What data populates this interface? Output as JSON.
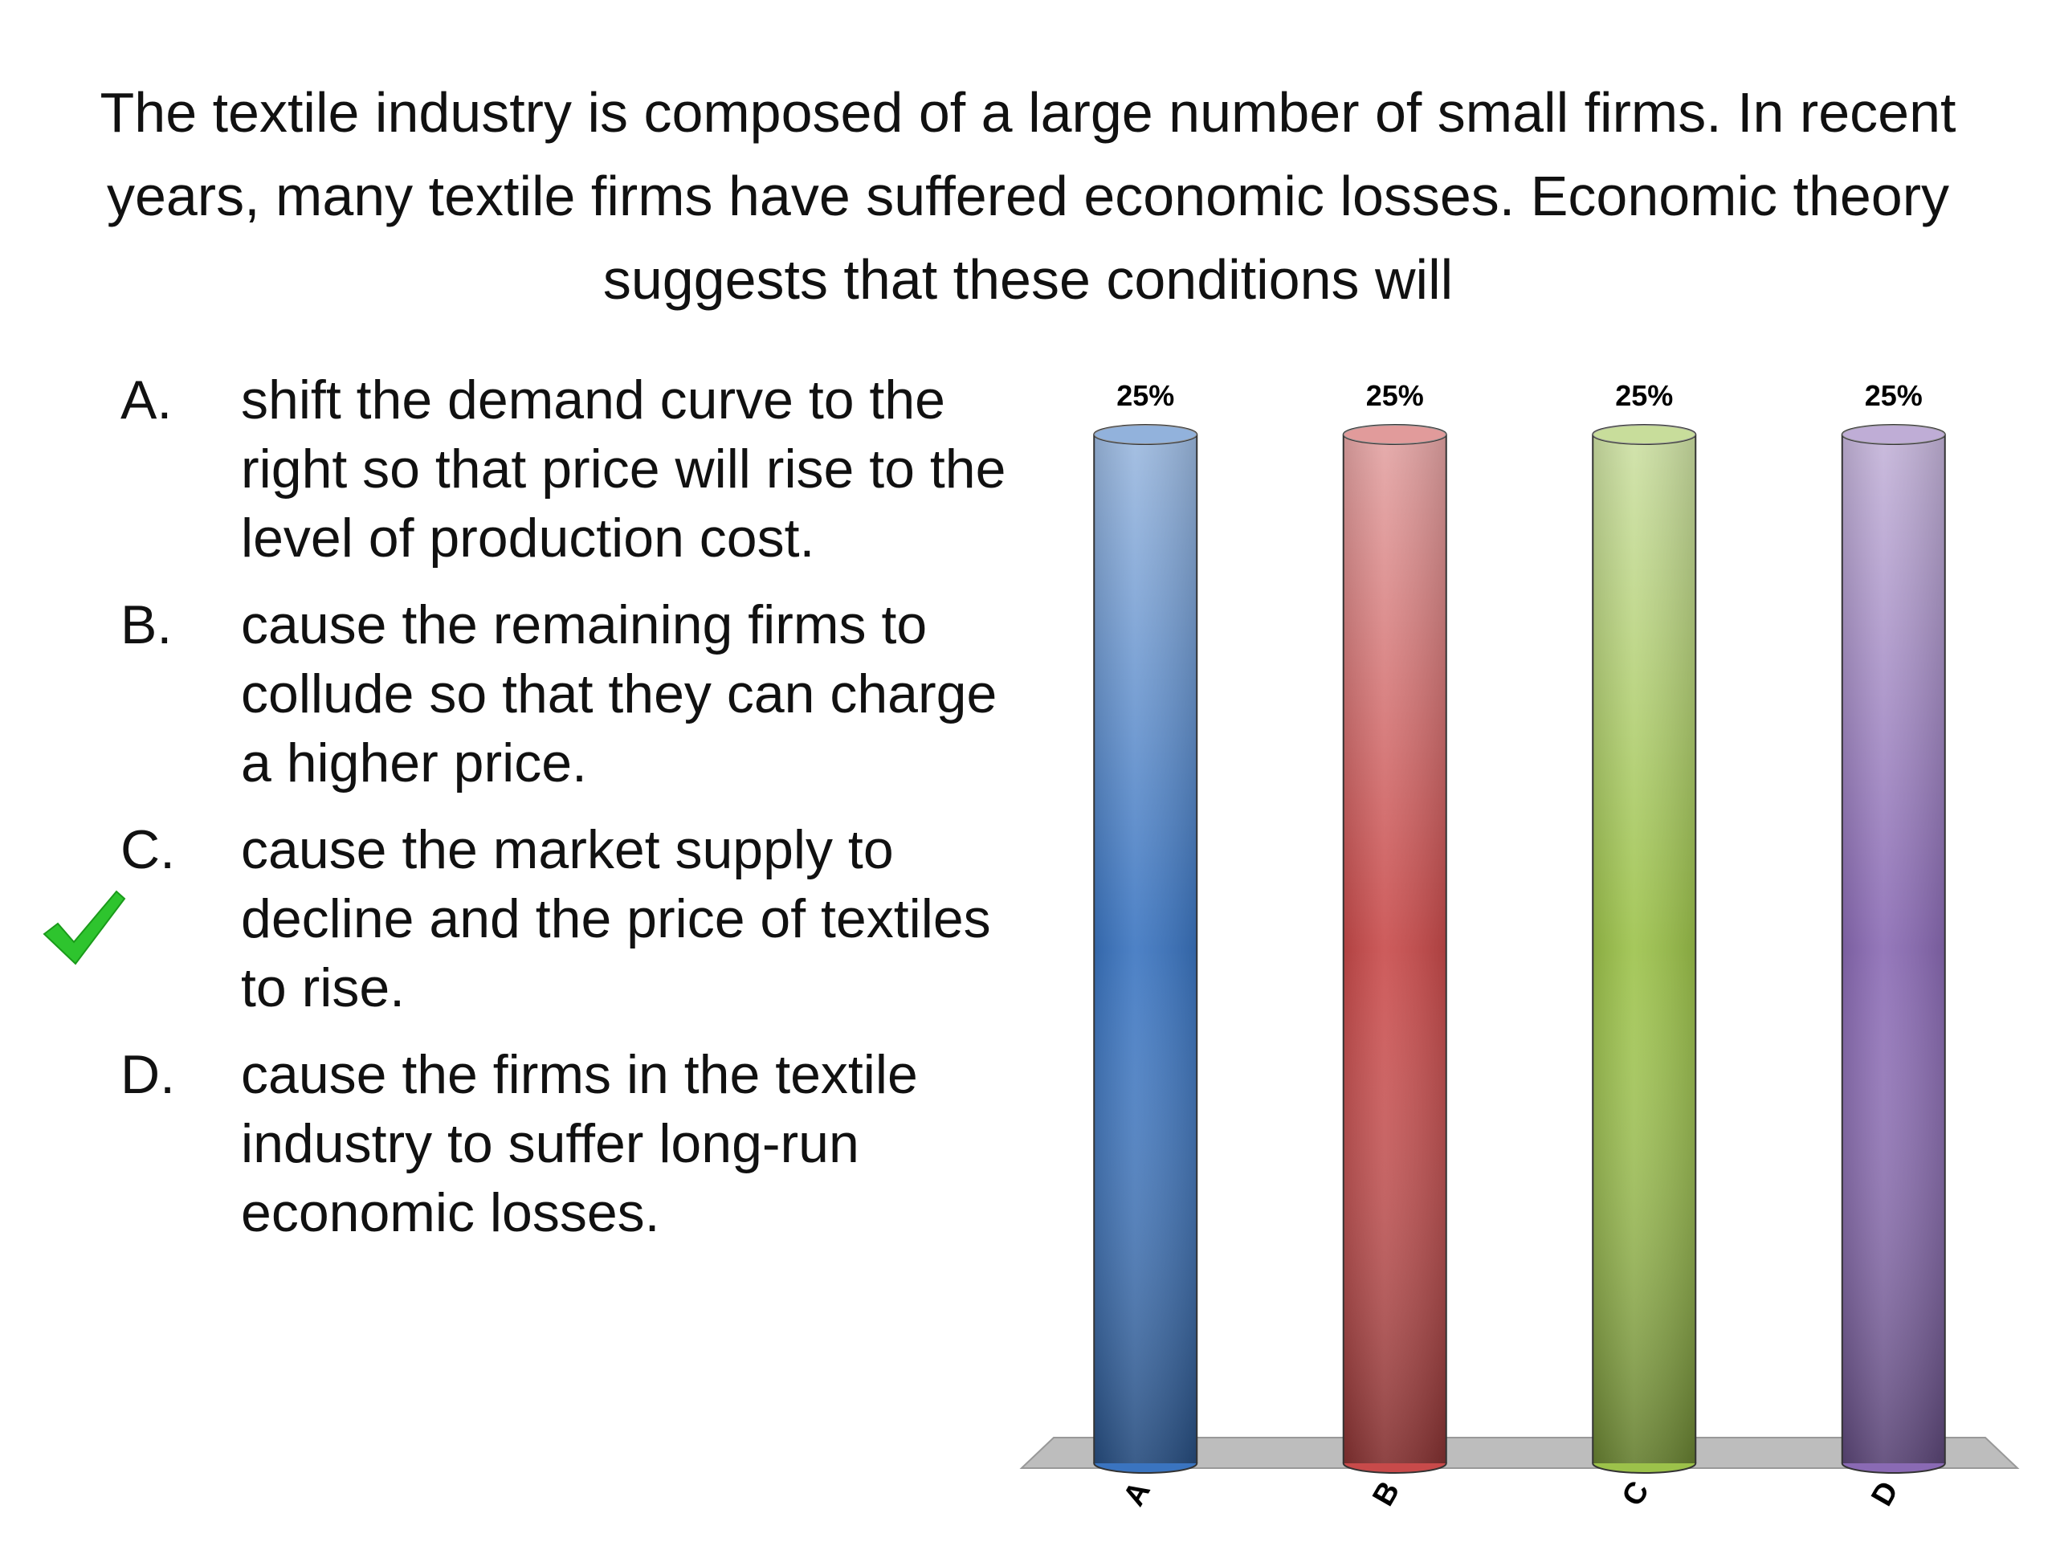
{
  "question": "The textile industry is composed of a large number of small firms. In recent years, many textile firms have suffered economic losses. Economic theory suggests that these conditions will",
  "options": [
    {
      "letter": "A.",
      "text": "shift the demand curve to the right so that price will rise to the level of production cost."
    },
    {
      "letter": "B.",
      "text": "cause the remaining firms to collude so that they can charge a higher price."
    },
    {
      "letter": "C.",
      "text": "cause the market supply to decline and the price of textiles to rise."
    },
    {
      "letter": "D.",
      "text": "cause the firms in the textile industry to suffer long-run economic losses."
    }
  ],
  "chart_data": {
    "type": "bar",
    "categories": [
      "A",
      "B",
      "C",
      "D"
    ],
    "values": [
      25,
      25,
      25,
      25
    ],
    "value_labels": [
      "25%",
      "25%",
      "25%",
      "25%"
    ],
    "colors": [
      "#3a74c0",
      "#c84a4a",
      "#9cc24a",
      "#8a6ab4"
    ]
  }
}
